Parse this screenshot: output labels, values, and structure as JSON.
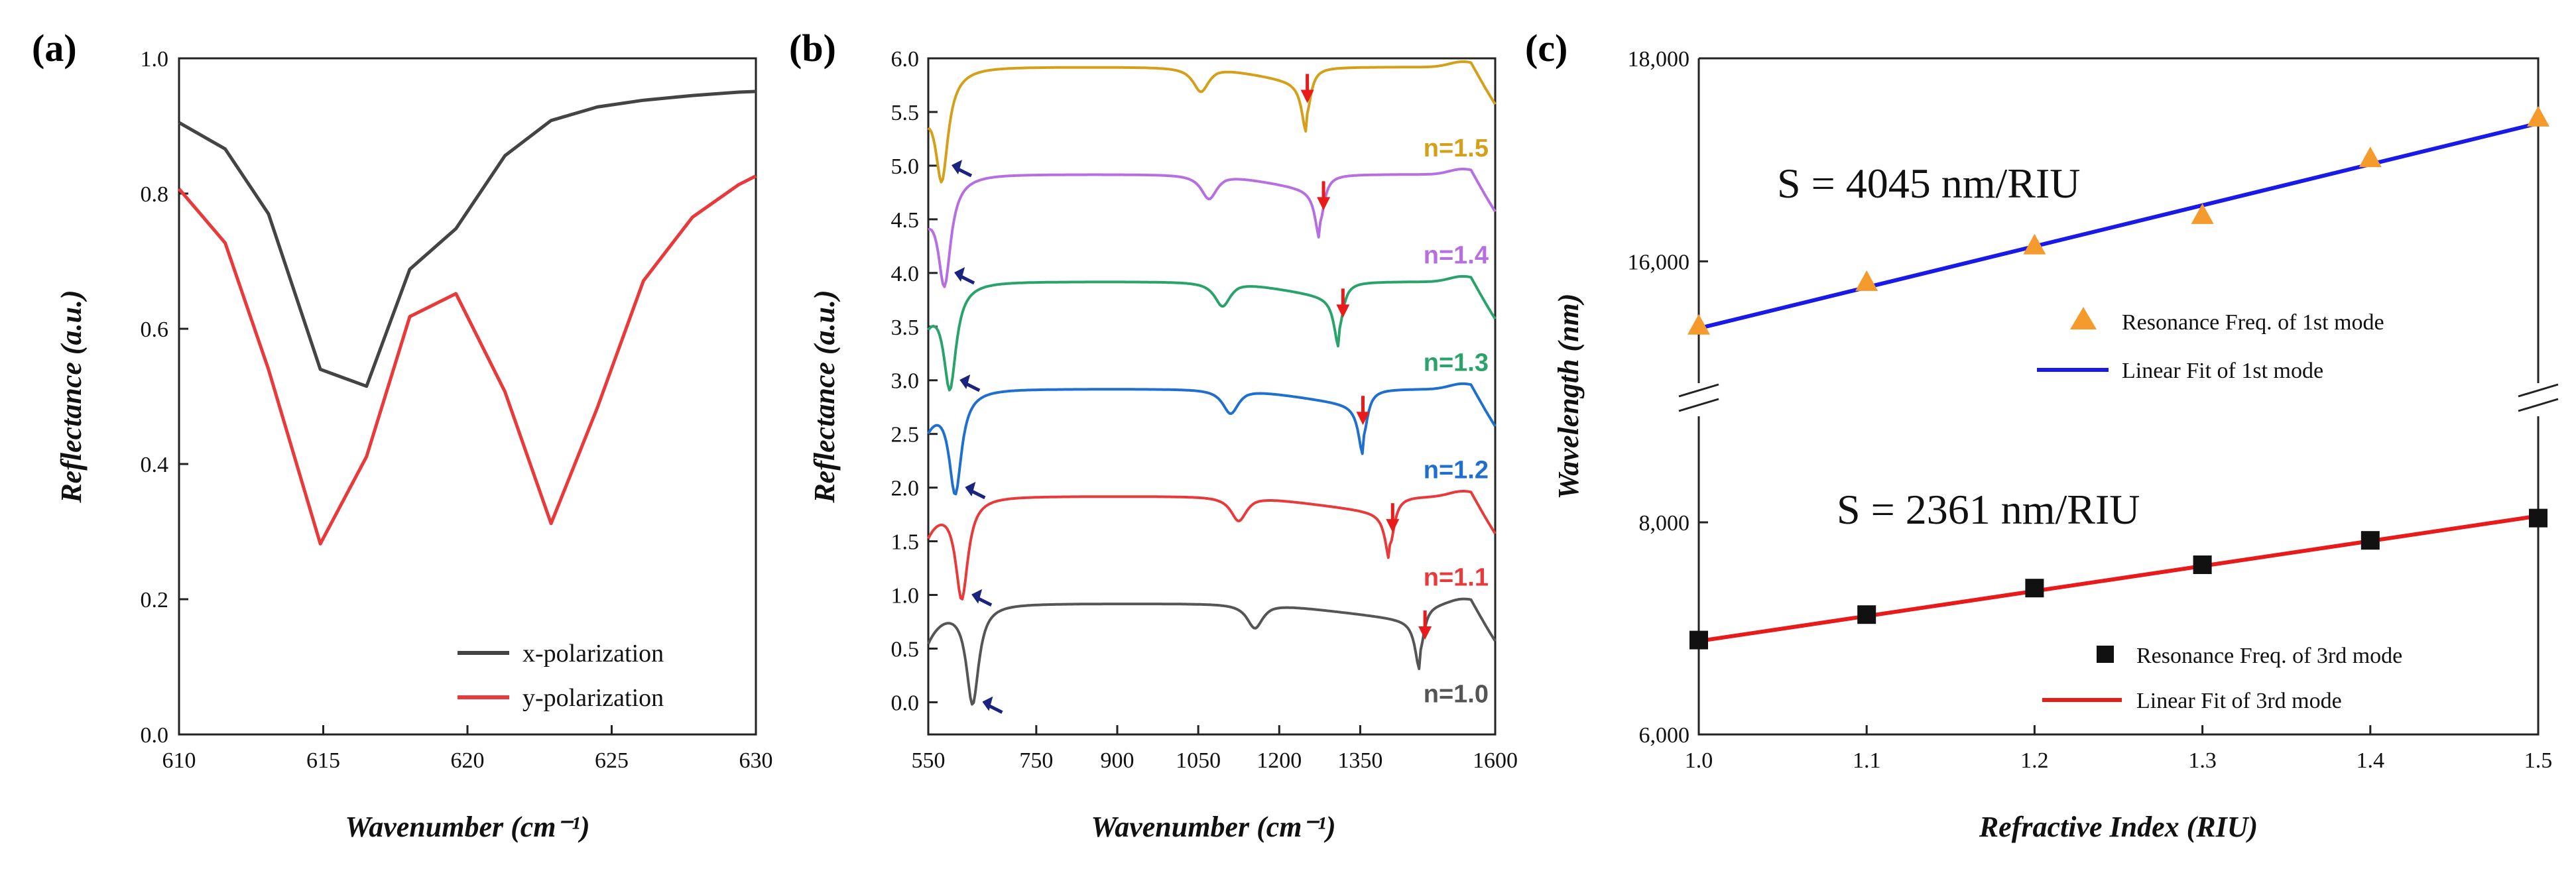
{
  "colors": {
    "x_pol": "#444444",
    "y_pol": "#e8393b",
    "n10": "#555555",
    "n11": "#e8393b",
    "n12": "#1f6fd1",
    "n13": "#2aa36b",
    "n14": "#b66fe0",
    "n15": "#d4a01a",
    "fit1": "#1a1ae8",
    "fit3": "#e81a1a",
    "tri": "#f59a2c",
    "square": "#111111",
    "arrow_red": "#e81a1a",
    "arrow_blue": "#1a237e"
  },
  "chart_data": [
    {
      "panel": "(a)",
      "type": "line",
      "xlabel": "Wavenumber (cm⁻¹)",
      "ylabel": "Reflectance (a.u.)",
      "xlim": [
        610,
        630
      ],
      "ylim": [
        0,
        1.0
      ],
      "xticks": [
        "610",
        "615",
        "620",
        "625",
        "630"
      ],
      "yticks": [
        "0.0",
        "0.2",
        "0.4",
        "0.6",
        "0.8",
        "1.0"
      ],
      "legend_position": "bottom-right",
      "series": [
        {
          "name": "x-polarization",
          "x": [
            610,
            611.6,
            613.1,
            614.9,
            616.5,
            618.0,
            619.6,
            621.3,
            622.9,
            624.5,
            626.1,
            627.8,
            629.4,
            630
          ],
          "y": [
            0.905,
            0.866,
            0.77,
            0.54,
            0.515,
            0.688,
            0.748,
            0.856,
            0.908,
            0.928,
            0.938,
            0.945,
            0.95,
            0.951
          ]
        },
        {
          "name": "y-polarization",
          "x": [
            610,
            611.6,
            613.1,
            614.9,
            616.5,
            618.0,
            619.6,
            621.3,
            622.9,
            624.5,
            626.1,
            627.8,
            629.4,
            630
          ],
          "y": [
            0.807,
            0.727,
            0.54,
            0.282,
            0.411,
            0.618,
            0.652,
            0.507,
            0.312,
            0.483,
            0.671,
            0.765,
            0.813,
            0.826
          ]
        }
      ]
    },
    {
      "panel": "(b)",
      "type": "line",
      "xlabel": "Wavenumber (cm⁻¹)",
      "ylabel": "Reflectance (a.u.)",
      "xlim": [
        550,
        1600
      ],
      "ylim": [
        -0.3,
        6.0
      ],
      "xticks": [
        "550",
        "750",
        "900",
        "1050",
        "1200",
        "1350",
        "1600"
      ],
      "yticks": [
        "0.0",
        "0.5",
        "1.0",
        "1.5",
        "2.0",
        "2.5",
        "3.0",
        "3.5",
        "4.0",
        "4.5",
        "5.0",
        "5.5",
        "6.0"
      ],
      "series": [
        {
          "name": "n=1.0",
          "offset": 0.0,
          "dip1": 632,
          "dip2": 1155,
          "dip3": 1460,
          "arrow": 1470
        },
        {
          "name": "n=1.1",
          "offset": 1.0,
          "dip1": 612,
          "dip2": 1125,
          "dip3": 1405,
          "arrow": 1410
        },
        {
          "name": "n=1.2",
          "offset": 2.0,
          "dip1": 600,
          "dip2": 1110,
          "dip3": 1355,
          "arrow": 1355
        },
        {
          "name": "n=1.3",
          "offset": 3.0,
          "dip1": 590,
          "dip2": 1095,
          "dip3": 1310,
          "arrow": 1318
        },
        {
          "name": "n=1.4",
          "offset": 4.0,
          "dip1": 580,
          "dip2": 1070,
          "dip3": 1275,
          "arrow": 1282
        },
        {
          "name": "n=1.5",
          "offset": 5.0,
          "dip1": 575,
          "dip2": 1055,
          "dip3": 1250,
          "arrow": 1252
        }
      ]
    },
    {
      "panel": "(c)",
      "type": "scatter",
      "xlabel": "Refractive Index (RIU)",
      "ylabel": "Wavelength (nm)",
      "xlim": [
        1.0,
        1.5
      ],
      "xticks": [
        "1.0",
        "1.1",
        "1.2",
        "1.3",
        "1.4",
        "1.5"
      ],
      "upper": {
        "ylim": [
          14800,
          18000
        ],
        "yticks": [
          "16,000",
          "18,000"
        ],
        "sensitivity": "S = 4045 nm/RIU",
        "markers_name": "Resonance Freq. of 1st mode",
        "fit_name": "Linear Fit of 1st mode",
        "x": [
          1.0,
          1.1,
          1.2,
          1.3,
          1.4,
          1.5
        ],
        "y": [
          15370,
          15800,
          16160,
          16460,
          17020,
          17420
        ],
        "fit": [
          15340,
          17360
        ]
      },
      "lower": {
        "ylim": [
          6000,
          9000
        ],
        "yticks": [
          "6,000",
          "8,000"
        ],
        "sensitivity": "S = 2361 nm/RIU",
        "markers_name": "Resonance Freq. of 3rd mode",
        "fit_name": "Linear Fit of 3rd mode",
        "x": [
          1.0,
          1.1,
          1.2,
          1.3,
          1.4,
          1.5
        ],
        "y": [
          6890,
          7130,
          7380,
          7600,
          7830,
          8040
        ],
        "fit": [
          6880,
          8060
        ]
      }
    }
  ]
}
